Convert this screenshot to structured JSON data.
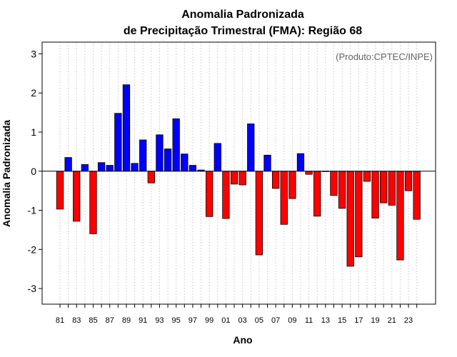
{
  "chart_data": {
    "type": "bar",
    "title": "Anomalia Padronizada",
    "subtitle": "de Precipitação Trimestral (FMA): Região 68",
    "annotation": "(Produto:CPTEC/INPE)",
    "xlabel": "Ano",
    "ylabel": "Anomalia Padronizada",
    "ylim": [
      -3.4,
      3.3
    ],
    "yticks": [
      -3,
      -2,
      -1,
      0,
      1,
      2,
      3
    ],
    "xtick_labels": [
      "81",
      "83",
      "85",
      "87",
      "89",
      "91",
      "93",
      "95",
      "97",
      "99",
      "01",
      "03",
      "05",
      "07",
      "09",
      "11",
      "13",
      "15",
      "17",
      "19",
      "21",
      "23"
    ],
    "categories": [
      "81",
      "82",
      "83",
      "84",
      "85",
      "86",
      "87",
      "88",
      "89",
      "90",
      "91",
      "92",
      "93",
      "94",
      "95",
      "96",
      "97",
      "98",
      "99",
      "00",
      "01",
      "02",
      "03",
      "04",
      "05",
      "06",
      "07",
      "08",
      "09",
      "10",
      "11",
      "12",
      "13",
      "14",
      "15",
      "16",
      "17",
      "18",
      "19",
      "20",
      "21",
      "22",
      "23",
      "24"
    ],
    "values": [
      -0.97,
      0.35,
      -1.28,
      0.17,
      -1.6,
      0.22,
      0.15,
      1.48,
      2.21,
      0.2,
      0.8,
      -0.3,
      0.93,
      0.57,
      1.34,
      0.44,
      0.15,
      0.03,
      -1.16,
      0.71,
      -1.21,
      -0.33,
      -0.35,
      1.21,
      -2.14,
      0.41,
      -0.44,
      -1.36,
      -0.7,
      0.45,
      -0.08,
      -1.15,
      0.0,
      -0.62,
      -0.95,
      -2.43,
      -2.19,
      -0.26,
      -1.2,
      -0.81,
      -0.87,
      -2.27,
      -0.5,
      -1.23
    ],
    "grid": true,
    "colors": {
      "positive": "#0000ff",
      "negative": "#ff0000",
      "edge": "#000000",
      "grid": "#d3d3d3"
    }
  }
}
